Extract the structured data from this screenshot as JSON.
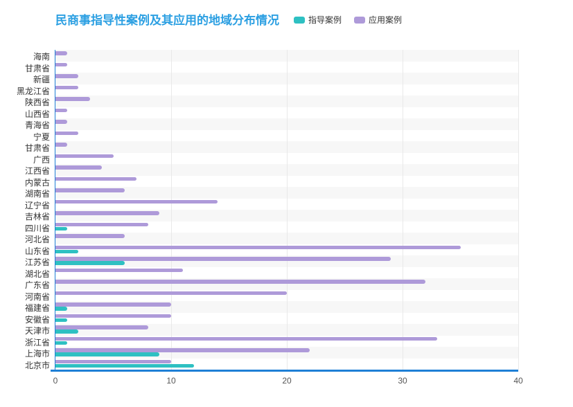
{
  "title": {
    "text": "民商事指导性案例及其应用的地域分布情况",
    "color": "#2b9fe2"
  },
  "legend": {
    "items": [
      {
        "label": "指导案例",
        "color": "#2ec0c2"
      },
      {
        "label": "应用案例",
        "color": "#ae9ad9"
      }
    ]
  },
  "colors": {
    "axis_line": "#1e7fd6",
    "gridline": "#e9e9e9",
    "stripe": "#f7f7f7",
    "y_label_text": "#333333",
    "x_label_text": "#555555"
  },
  "chart_data": {
    "type": "bar",
    "orientation": "horizontal",
    "title": "民商事指导性案例及其应用的地域分布情况",
    "categories": [
      "海南",
      "甘肃省",
      "新疆",
      "黑龙江省",
      "陕西省",
      "山西省",
      "青海省",
      "宁夏",
      "甘肃省",
      "广西",
      "江西省",
      "内蒙古",
      "湖南省",
      "辽宁省",
      "吉林省",
      "四川省",
      "河北省",
      "山东省",
      "江苏省",
      "湖北省",
      "广东省",
      "河南省",
      "福建省",
      "安徽省",
      "天津市",
      "浙江省",
      "上海市",
      "北京市"
    ],
    "series": [
      {
        "name": "指导案例",
        "color": "#2ec0c2",
        "values": [
          0,
          0,
          0,
          0,
          0,
          0,
          0,
          0,
          0,
          0,
          0,
          0,
          0,
          0,
          0,
          1,
          0,
          2,
          6,
          0,
          0,
          0,
          1,
          1,
          2,
          1,
          9,
          12
        ]
      },
      {
        "name": "应用案例",
        "color": "#ae9ad9",
        "values": [
          1,
          1,
          2,
          2,
          3,
          1,
          1,
          2,
          1,
          5,
          4,
          7,
          6,
          14,
          9,
          8,
          6,
          35,
          29,
          11,
          32,
          20,
          10,
          10,
          8,
          33,
          22,
          10
        ]
      }
    ],
    "xlabel": "",
    "ylabel": "",
    "xlim": [
      0,
      40
    ],
    "x_ticks": [
      0,
      10,
      20,
      30,
      40
    ],
    "grid": true,
    "legend_position": "top"
  }
}
